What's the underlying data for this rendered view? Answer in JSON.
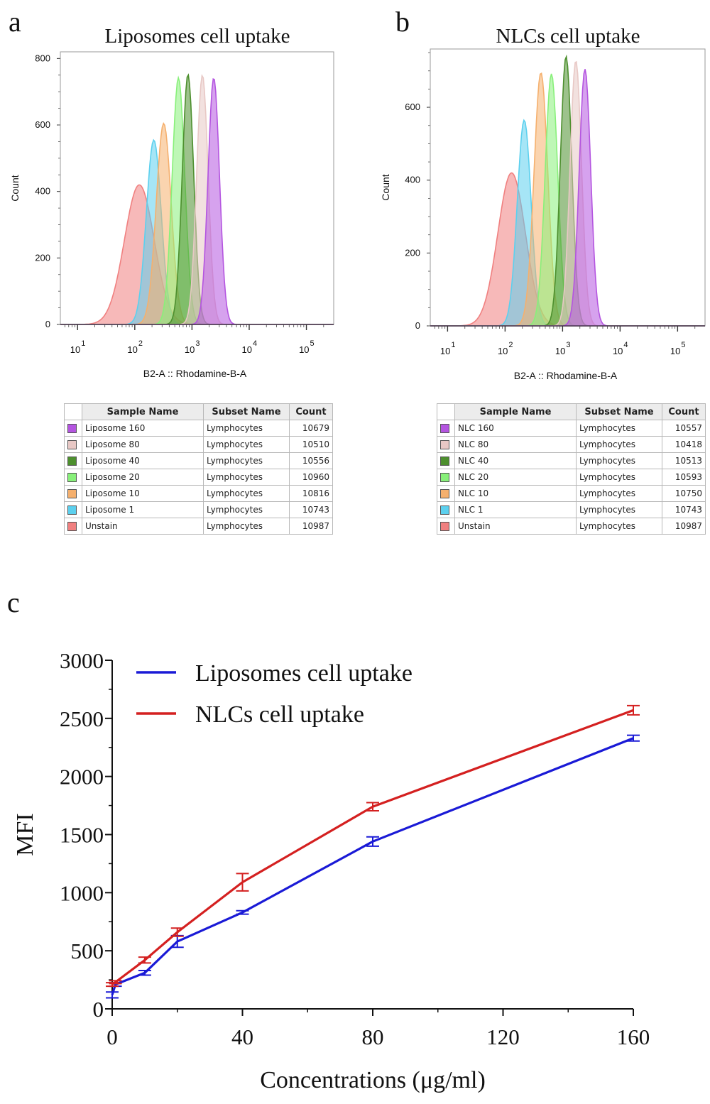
{
  "panels": {
    "a": {
      "letter": "a",
      "title": "Liposomes cell uptake"
    },
    "b": {
      "letter": "b",
      "title": "NLCs cell uptake"
    },
    "c": {
      "letter": "c"
    }
  },
  "chart_data": [
    {
      "id": "a",
      "type": "area",
      "title": "Liposomes cell uptake",
      "xlabel": "B2-A :: Rhodamine-B-A",
      "ylabel": "Count",
      "x_scale": "log",
      "xlim": [
        5,
        300000
      ],
      "ylim": [
        0,
        820
      ],
      "yticks": [
        0,
        200,
        400,
        600,
        800
      ],
      "xticks": [
        10,
        100,
        1000,
        10000,
        100000
      ],
      "xtick_labels": [
        "10",
        "10",
        "10",
        "10",
        "10"
      ],
      "xtick_exponents": [
        "1",
        "2",
        "3",
        "4",
        "5"
      ],
      "grid": false,
      "series": [
        {
          "peak_x": 120,
          "peak_count": 420,
          "width_log10": 0.26,
          "color": "#f08080"
        },
        {
          "peak_x": 215,
          "peak_count": 555,
          "width_log10": 0.13,
          "color": "#5cd0ee"
        },
        {
          "peak_x": 320,
          "peak_count": 605,
          "width_log10": 0.13,
          "color": "#f5b06e"
        },
        {
          "peak_x": 580,
          "peak_count": 742,
          "width_log10": 0.11,
          "color": "#88f07a"
        },
        {
          "peak_x": 850,
          "peak_count": 752,
          "width_log10": 0.1,
          "color": "#4d8f2e"
        },
        {
          "peak_x": 1520,
          "peak_count": 750,
          "width_log10": 0.1,
          "color": "#e8c8c5"
        },
        {
          "peak_x": 2400,
          "peak_count": 742,
          "width_log10": 0.1,
          "color": "#b455e0"
        }
      ],
      "table": {
        "headers": [
          "Sample Name",
          "Subset Name",
          "Count"
        ],
        "rows": [
          {
            "sample": "Liposome 160",
            "subset": "Lymphocytes",
            "count": "10679",
            "color": "#b455e0"
          },
          {
            "sample": "Liposome 80",
            "subset": "Lymphocytes",
            "count": "10510",
            "color": "#e8c8c5"
          },
          {
            "sample": "Liposome 40",
            "subset": "Lymphocytes",
            "count": "10556",
            "color": "#4d8f2e"
          },
          {
            "sample": "Liposome 20",
            "subset": "Lymphocytes",
            "count": "10960",
            "color": "#88f07a"
          },
          {
            "sample": "Liposome 10",
            "subset": "Lymphocytes",
            "count": "10816",
            "color": "#f5b06e"
          },
          {
            "sample": "Liposome 1",
            "subset": "Lymphocytes",
            "count": "10743",
            "color": "#5cd0ee"
          },
          {
            "sample": "Unstain",
            "subset": "Lymphocytes",
            "count": "10987",
            "color": "#f08080"
          }
        ]
      }
    },
    {
      "id": "b",
      "type": "area",
      "title": "NLCs cell uptake",
      "xlabel": "B2-A :: Rhodamine-B-A",
      "ylabel": "Count",
      "x_scale": "log",
      "xlim": [
        5,
        300000
      ],
      "ylim": [
        0,
        760
      ],
      "yticks": [
        0,
        200,
        400,
        600
      ],
      "xticks": [
        10,
        100,
        1000,
        10000,
        100000
      ],
      "xtick_labels": [
        "10",
        "10",
        "10",
        "10",
        "10"
      ],
      "xtick_exponents": [
        "1",
        "2",
        "3",
        "4",
        "5"
      ],
      "grid": false,
      "series": [
        {
          "peak_x": 130,
          "peak_count": 420,
          "width_log10": 0.24,
          "color": "#f08080"
        },
        {
          "peak_x": 215,
          "peak_count": 565,
          "width_log10": 0.12,
          "color": "#5cd0ee"
        },
        {
          "peak_x": 420,
          "peak_count": 695,
          "width_log10": 0.12,
          "color": "#f5b06e"
        },
        {
          "peak_x": 640,
          "peak_count": 692,
          "width_log10": 0.11,
          "color": "#88f07a"
        },
        {
          "peak_x": 1150,
          "peak_count": 740,
          "width_log10": 0.1,
          "color": "#4d8f2e"
        },
        {
          "peak_x": 1700,
          "peak_count": 728,
          "width_log10": 0.1,
          "color": "#e8c8c5"
        },
        {
          "peak_x": 2450,
          "peak_count": 705,
          "width_log10": 0.1,
          "color": "#b455e0"
        }
      ],
      "table": {
        "headers": [
          "Sample Name",
          "Subset Name",
          "Count"
        ],
        "rows": [
          {
            "sample": "NLC 160",
            "subset": "Lymphocytes",
            "count": "10557",
            "color": "#b455e0"
          },
          {
            "sample": "NLC 80",
            "subset": "Lymphocytes",
            "count": "10418",
            "color": "#e8c8c5"
          },
          {
            "sample": "NLC 40",
            "subset": "Lymphocytes",
            "count": "10513",
            "color": "#4d8f2e"
          },
          {
            "sample": "NLC 20",
            "subset": "Lymphocytes",
            "count": "10593",
            "color": "#88f07a"
          },
          {
            "sample": "NLC 10",
            "subset": "Lymphocytes",
            "count": "10750",
            "color": "#f5b06e"
          },
          {
            "sample": "NLC 1",
            "subset": "Lymphocytes",
            "count": "10743",
            "color": "#5cd0ee"
          },
          {
            "sample": "Unstain",
            "subset": "Lymphocytes",
            "count": "10987",
            "color": "#f08080"
          }
        ]
      }
    },
    {
      "id": "c",
      "type": "line",
      "xlabel": "Concentrations (μg/ml)",
      "ylabel": "MFI",
      "xlim": [
        0,
        160
      ],
      "ylim": [
        0,
        3000
      ],
      "xticks": [
        0,
        40,
        80,
        120,
        160
      ],
      "yticks": [
        0,
        500,
        1000,
        1500,
        2000,
        2500,
        3000
      ],
      "legend_position": "top-left",
      "grid": false,
      "series": [
        {
          "name": "Liposomes cell uptake",
          "color": "#1a1ad6",
          "x": [
            0,
            1,
            10,
            20,
            40,
            80,
            160
          ],
          "y": [
            120,
            210,
            310,
            580,
            830,
            1440,
            2330
          ],
          "err": [
            25,
            15,
            20,
            50,
            15,
            40,
            25
          ]
        },
        {
          "name": "NLCs cell uptake",
          "color": "#d42020",
          "x": [
            0,
            1,
            10,
            20,
            40,
            80,
            160
          ],
          "y": [
            210,
            230,
            420,
            660,
            1090,
            1740,
            2570
          ],
          "err": [
            15,
            12,
            25,
            35,
            75,
            35,
            40
          ]
        }
      ]
    }
  ]
}
